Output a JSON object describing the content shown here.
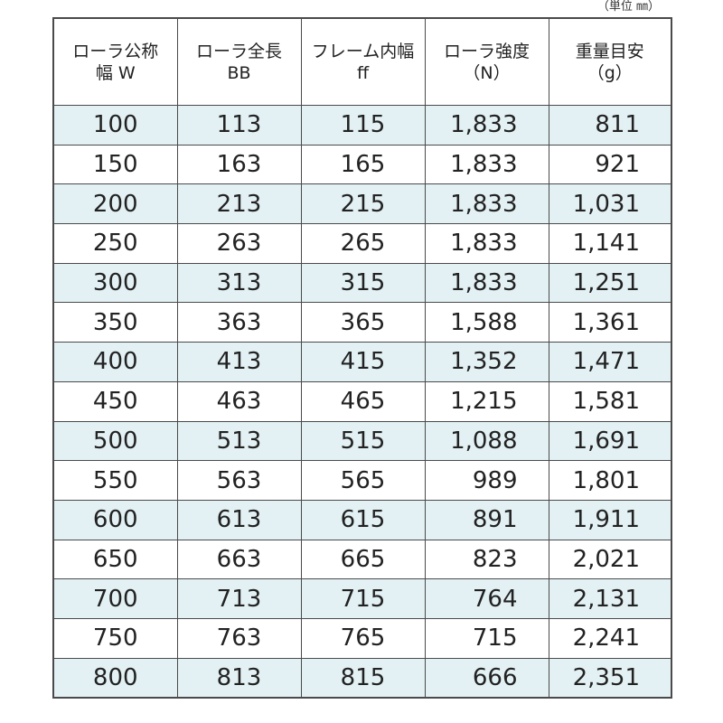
{
  "unit_note": "（単位 ㎜）",
  "headers": [
    {
      "line1": "ローラ公称",
      "line2": "幅 W"
    },
    {
      "line1": "ローラ全長",
      "line2": "BB"
    },
    {
      "line1": "フレーム内幅",
      "line2": "ff"
    },
    {
      "line1": "ローラ強度",
      "line2": "（N）"
    },
    {
      "line1": "重量目安",
      "line2": "（g）"
    }
  ],
  "rows": [
    [
      "100",
      "113",
      "115",
      "1,833",
      "811"
    ],
    [
      "150",
      "163",
      "165",
      "1,833",
      "921"
    ],
    [
      "200",
      "213",
      "215",
      "1,833",
      "1,031"
    ],
    [
      "250",
      "263",
      "265",
      "1,833",
      "1,141"
    ],
    [
      "300",
      "313",
      "315",
      "1,833",
      "1,251"
    ],
    [
      "350",
      "363",
      "365",
      "1,588",
      "1,361"
    ],
    [
      "400",
      "413",
      "415",
      "1,352",
      "1,471"
    ],
    [
      "450",
      "463",
      "465",
      "1,215",
      "1,581"
    ],
    [
      "500",
      "513",
      "515",
      "1,088",
      "1,691"
    ],
    [
      "550",
      "563",
      "565",
      "989",
      "1,801"
    ],
    [
      "600",
      "613",
      "615",
      "891",
      "1,911"
    ],
    [
      "650",
      "663",
      "665",
      "823",
      "2,021"
    ],
    [
      "700",
      "713",
      "715",
      "764",
      "2,131"
    ],
    [
      "750",
      "763",
      "765",
      "715",
      "2,241"
    ],
    [
      "800",
      "813",
      "815",
      "666",
      "2,351"
    ]
  ],
  "colors": {
    "stripe": "#e3f1f4",
    "border": "#4a4a4a"
  }
}
